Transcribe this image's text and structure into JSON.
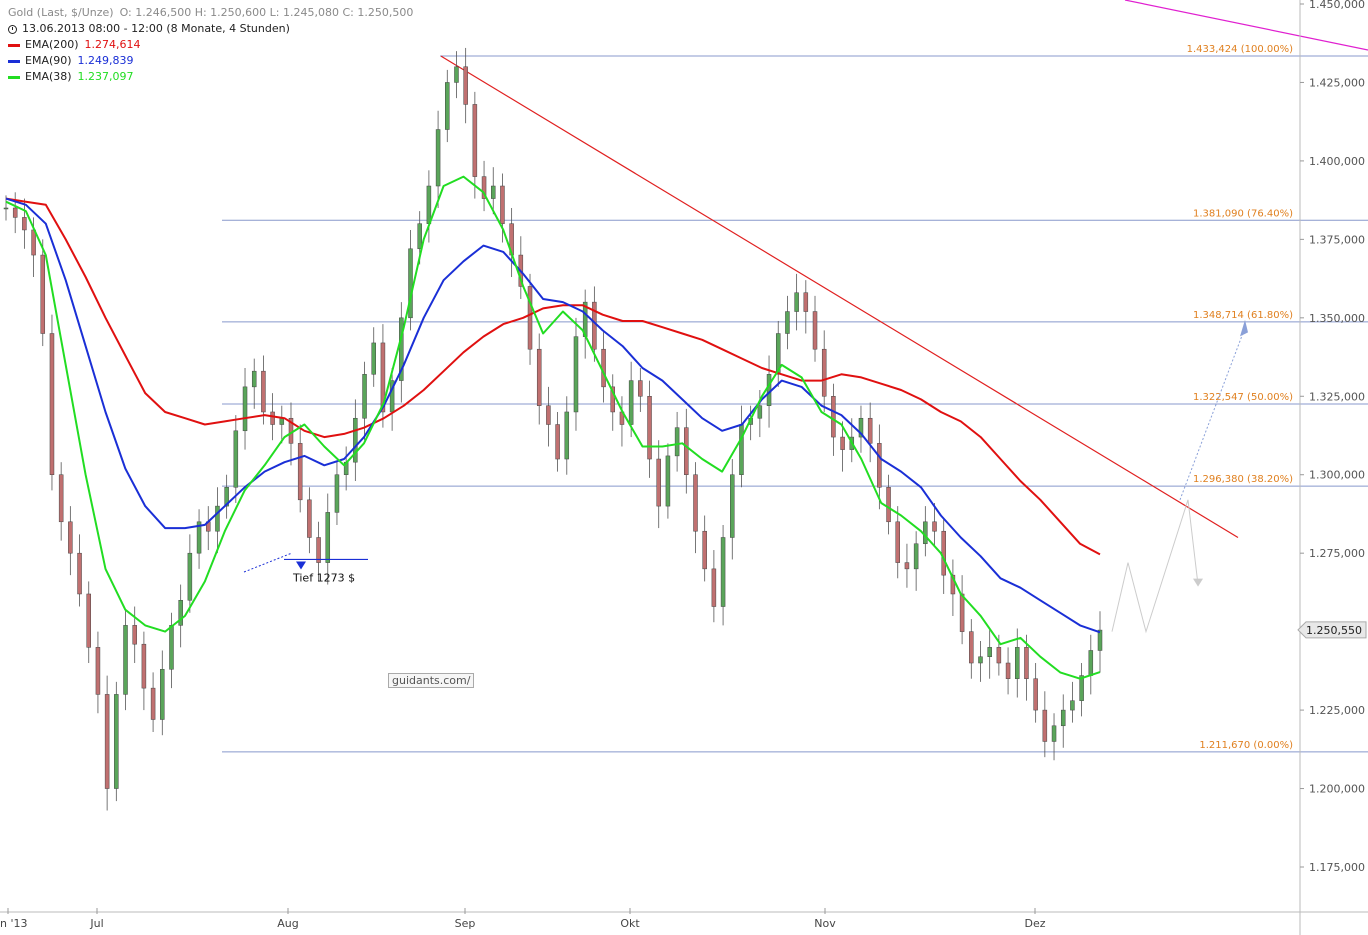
{
  "legend": {
    "instrument": "Gold (Last, $/Unze)",
    "ohlc": "O: 1.246,500  H: 1.250,600  L: 1.245,080  C: 1.250,500",
    "period": "13.06.2013 08:00 - 12:00 (8 Monate, 4 Stunden)",
    "ema200_label": "EMA(200)",
    "ema200_value": "1.274,614",
    "ema90_label": "EMA(90)",
    "ema90_value": "1.249,839",
    "ema38_label": "EMA(38)",
    "ema38_value": "1.237,097"
  },
  "watermark": "guidants.com/",
  "annotation_low": "Tief 1273 $",
  "last_price_label": "1.250,550",
  "colors": {
    "ema200": "#e01010",
    "ema90": "#1a2fd6",
    "ema38": "#22dd22",
    "fib": "#e08020",
    "fib_line": "#8899cc",
    "trend": "#e02020",
    "magenta": "#e020d0",
    "candle_up": "#5aa55a",
    "candle_down": "#c07070"
  },
  "chart_data": {
    "type": "candlestick",
    "y_ticks": [
      {
        "v": 1450,
        "label": "1.450,000"
      },
      {
        "v": 1425,
        "label": "1.425,000"
      },
      {
        "v": 1400,
        "label": "1.400,000"
      },
      {
        "v": 1375,
        "label": "1.375,000"
      },
      {
        "v": 1350,
        "label": "1.350,000"
      },
      {
        "v": 1325,
        "label": "1.325,000"
      },
      {
        "v": 1300,
        "label": "1.300,000"
      },
      {
        "v": 1275,
        "label": "1.275,000"
      },
      {
        "v": 1250,
        "label": "1.250,000"
      },
      {
        "v": 1225,
        "label": "1.225,000"
      },
      {
        "v": 1200,
        "label": "1.200,000"
      },
      {
        "v": 1175,
        "label": "1.175,000"
      }
    ],
    "ylim": [
      1161,
      1451
    ],
    "x_labels": [
      "n '13",
      "Jul",
      "Aug",
      "Sep",
      "Okt",
      "Nov",
      "Dez"
    ],
    "fib_levels": [
      {
        "v": 1433.424,
        "label": "1.433,424 (100.00%)"
      },
      {
        "v": 1381.09,
        "label": "1.381,090 (76.40%)"
      },
      {
        "v": 1348.714,
        "label": "1.348,714 (61.80%)"
      },
      {
        "v": 1322.547,
        "label": "1.322,547 (50.00%)"
      },
      {
        "v": 1296.38,
        "label": "1.296,380 (38.20%)"
      },
      {
        "v": 1211.67,
        "label": "1.211,670 (0.00%)"
      }
    ],
    "last_price": 1250.55,
    "series": [
      {
        "name": "EMA(200)",
        "values": [
          1388,
          1387,
          1386,
          1375,
          1363,
          1350,
          1338,
          1326,
          1320,
          1318,
          1316,
          1317,
          1318,
          1319,
          1318,
          1314,
          1312,
          1313,
          1315,
          1318,
          1322,
          1327,
          1333,
          1339,
          1344,
          1348,
          1350,
          1353,
          1354,
          1354,
          1351,
          1349,
          1349,
          1347,
          1345,
          1343,
          1340,
          1337,
          1334,
          1332,
          1330,
          1330,
          1332,
          1331,
          1329,
          1327,
          1324,
          1320,
          1317,
          1312,
          1305,
          1298,
          1292,
          1285,
          1278,
          1274.6
        ]
      },
      {
        "name": "EMA(90)",
        "values": [
          1388,
          1386,
          1380,
          1362,
          1341,
          1320,
          1302,
          1290,
          1283,
          1283,
          1284,
          1290,
          1296,
          1301,
          1304,
          1306,
          1303,
          1305,
          1312,
          1322,
          1335,
          1350,
          1362,
          1368,
          1373,
          1371,
          1364,
          1356,
          1355,
          1352,
          1346,
          1341,
          1334,
          1330,
          1324,
          1318,
          1314,
          1316,
          1324,
          1330,
          1328,
          1322,
          1319,
          1313,
          1305,
          1301,
          1296,
          1287,
          1280,
          1274,
          1267,
          1264,
          1260,
          1256,
          1252,
          1249.8
        ]
      },
      {
        "name": "EMA(38)",
        "values": [
          1387,
          1384,
          1370,
          1335,
          1300,
          1270,
          1257,
          1252,
          1250,
          1255,
          1266,
          1282,
          1295,
          1303,
          1312,
          1316,
          1309,
          1303,
          1310,
          1323,
          1347,
          1375,
          1392,
          1395,
          1390,
          1378,
          1360,
          1345,
          1352,
          1346,
          1333,
          1320,
          1309,
          1309,
          1310,
          1305,
          1301,
          1312,
          1325,
          1335,
          1331,
          1320,
          1316,
          1305,
          1291,
          1287,
          1282,
          1275,
          1262,
          1255,
          1246,
          1248,
          1242,
          1237,
          1235,
          1237.1
        ]
      }
    ],
    "candles_close": [
      1385,
      1382,
      1378,
      1370,
      1345,
      1300,
      1285,
      1275,
      1262,
      1245,
      1230,
      1200,
      1230,
      1252,
      1246,
      1232,
      1222,
      1238,
      1252,
      1260,
      1275,
      1285,
      1282,
      1290,
      1296,
      1314,
      1328,
      1333,
      1320,
      1316,
      1318,
      1310,
      1292,
      1280,
      1272,
      1288,
      1300,
      1304,
      1318,
      1332,
      1342,
      1320,
      1330,
      1350,
      1372,
      1380,
      1392,
      1410,
      1425,
      1430,
      1418,
      1395,
      1388,
      1392,
      1380,
      1370,
      1360,
      1340,
      1322,
      1316,
      1305,
      1320,
      1344,
      1355,
      1340,
      1328,
      1320,
      1316,
      1330,
      1325,
      1305,
      1290,
      1306,
      1315,
      1300,
      1282,
      1270,
      1258,
      1280,
      1300,
      1316,
      1318,
      1322,
      1332,
      1345,
      1352,
      1358,
      1352,
      1340,
      1325,
      1312,
      1308,
      1312,
      1318,
      1310,
      1296,
      1285,
      1272,
      1270,
      1278,
      1285,
      1282,
      1268,
      1262,
      1250,
      1240,
      1242,
      1245,
      1240,
      1235,
      1245,
      1235,
      1225,
      1215,
      1220,
      1225,
      1228,
      1236,
      1244,
      1250.5
    ],
    "trendline": {
      "from": [
        1433.4,
        "2013-08-28"
      ],
      "to": [
        1280,
        "2013-12-27"
      ]
    }
  }
}
